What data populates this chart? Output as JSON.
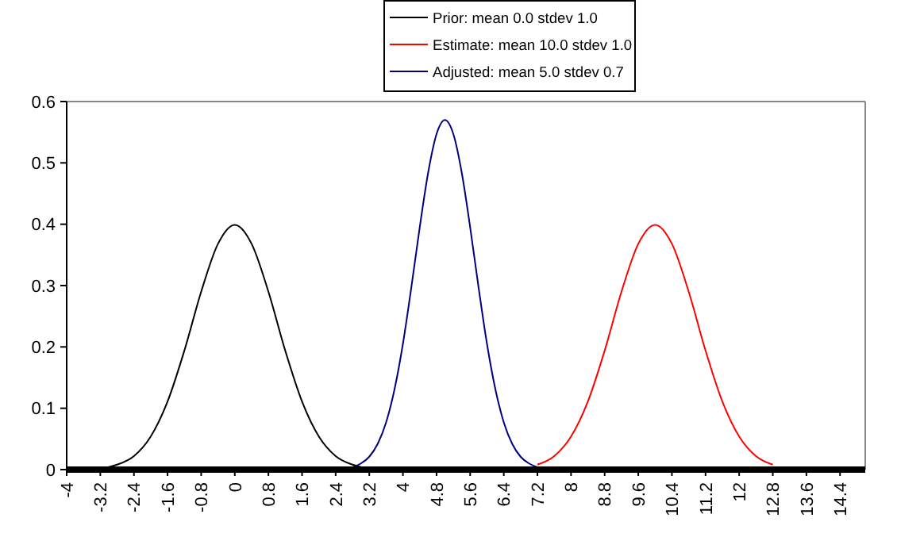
{
  "chart_data": {
    "type": "line",
    "xlim": [
      -4,
      15
    ],
    "ylim": [
      0,
      0.6
    ],
    "xticks": [
      -4,
      -3.2,
      -2.4,
      -1.6,
      -0.8,
      0,
      0.8,
      1.6,
      2.4,
      3.2,
      4,
      4.8,
      5.6,
      6.4,
      7.2,
      8,
      8.8,
      9.6,
      10.4,
      11.2,
      12,
      12.8,
      13.6,
      14.4
    ],
    "yticks": [
      0,
      0.1,
      0.2,
      0.3,
      0.4,
      0.5,
      0.6
    ],
    "grid": false,
    "legend": "top",
    "marker": "none",
    "line_style": "solid",
    "series": [
      {
        "name": "Prior: mean 0.0 stdev 1.0",
        "color": "#000000",
        "x": [
          -3.6,
          -3.2,
          -2.8,
          -2.4,
          -2,
          -1.6,
          -1.2,
          -0.8,
          -0.4,
          0,
          0.4,
          0.8,
          1.2,
          1.6,
          2,
          2.4,
          2.8,
          3.2,
          3.6
        ],
        "values": [
          0.001,
          0.002,
          0.008,
          0.022,
          0.054,
          0.111,
          0.194,
          0.29,
          0.368,
          0.399,
          0.368,
          0.29,
          0.194,
          0.111,
          0.054,
          0.022,
          0.008,
          0.002,
          0.001
        ]
      },
      {
        "name": "Estimate: mean 10.0 stdev 1.0",
        "color": "#ff0000",
        "x": [
          7.2,
          7.6,
          8,
          8.4,
          8.8,
          9.2,
          9.6,
          10,
          10.4,
          10.8,
          11.2,
          11.6,
          12,
          12.4,
          12.8
        ],
        "values": [
          0.008,
          0.022,
          0.054,
          0.111,
          0.194,
          0.29,
          0.368,
          0.399,
          0.368,
          0.29,
          0.194,
          0.111,
          0.054,
          0.022,
          0.008
        ]
      },
      {
        "name": "Adjusted: mean 5.0 stdev 0.7",
        "color": "#000080",
        "x": [
          2.6,
          2.8,
          3,
          3.2,
          3.4,
          3.6,
          3.8,
          4,
          4.2,
          4.4,
          4.6,
          4.8,
          5,
          5.2,
          5.4,
          5.6,
          5.8,
          6,
          6.2,
          6.4,
          6.6,
          6.8,
          7,
          7.2
        ],
        "values": [
          0.002,
          0.004,
          0.01,
          0.021,
          0.042,
          0.077,
          0.131,
          0.205,
          0.297,
          0.395,
          0.484,
          0.547,
          0.57,
          0.547,
          0.484,
          0.395,
          0.297,
          0.205,
          0.131,
          0.077,
          0.042,
          0.021,
          0.01,
          0.004
        ]
      }
    ]
  }
}
